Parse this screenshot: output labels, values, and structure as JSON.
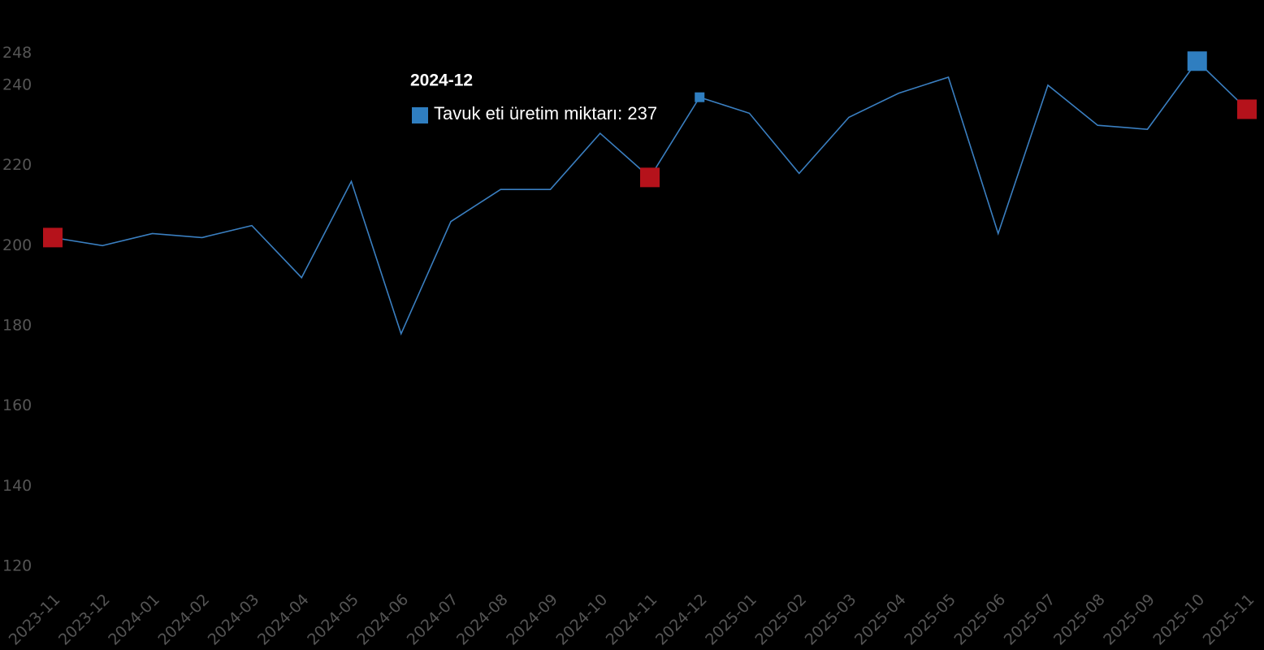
{
  "chart_data": {
    "type": "line",
    "categories": [
      "2023-11",
      "2023-12",
      "2024-01",
      "2024-02",
      "2024-03",
      "2024-04",
      "2024-05",
      "2024-06",
      "2024-07",
      "2024-08",
      "2024-09",
      "2024-10",
      "2024-11",
      "2024-12",
      "2025-01",
      "2025-02",
      "2025-03",
      "2025-04",
      "2025-05",
      "2025-06",
      "2025-07",
      "2025-08",
      "2025-09",
      "2025-10",
      "2025-11"
    ],
    "series": [
      {
        "color": "#3a7fc1",
        "values": [
          202,
          200,
          203,
          202,
          205,
          192,
          216,
          178,
          206,
          214,
          214,
          228,
          217,
          237,
          233,
          218,
          232,
          238,
          242,
          203,
          240,
          230,
          229,
          246,
          234
        ]
      }
    ],
    "highlights": [
      {
        "index": 0,
        "color": "#b5121b"
      },
      {
        "index": 12,
        "color": "#b5121b"
      },
      {
        "index": 24,
        "color": "#b5121b"
      },
      {
        "index": 23,
        "color": "#2f7ec0"
      }
    ],
    "hover_index": 13,
    "tooltip": {
      "title": "2024-12",
      "label": "Tavuk eti üretim miktarı: 237",
      "color": "#2f7ec0"
    },
    "ylim": [
      120,
      248
    ],
    "yticks": [
      120,
      140,
      160,
      180,
      200,
      220,
      240,
      248
    ]
  }
}
